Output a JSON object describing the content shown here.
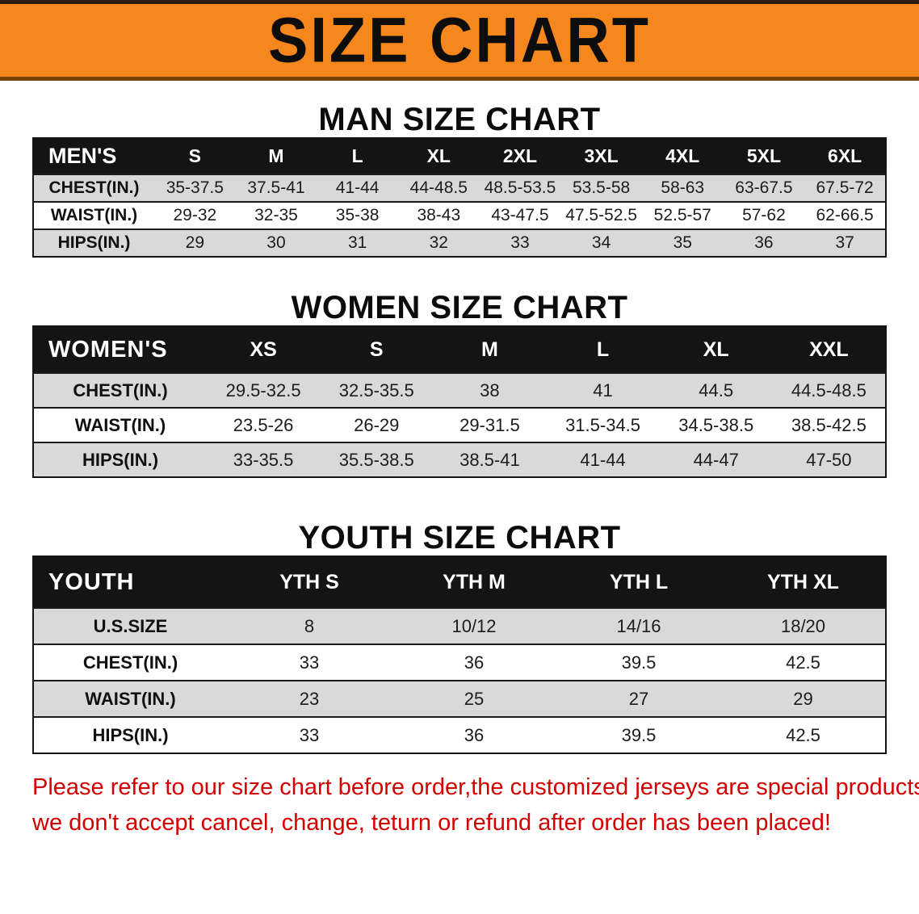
{
  "banner": {
    "title": "SIZE CHART",
    "bg_color": "#f6871d"
  },
  "men": {
    "heading": "MAN SIZE CHART",
    "table": {
      "header": [
        "MEN'S",
        "S",
        "M",
        "L",
        "XL",
        "2XL",
        "3XL",
        "4XL",
        "5XL",
        "6XL"
      ],
      "rows": [
        {
          "label": "CHEST(IN.)",
          "values": [
            "35-37.5",
            "37.5-41",
            "41-44",
            "44-48.5",
            "48.5-53.5",
            "53.5-58",
            "58-63",
            "63-67.5",
            "67.5-72"
          ]
        },
        {
          "label": "WAIST(IN.)",
          "values": [
            "29-32",
            "32-35",
            "35-38",
            "38-43",
            "43-47.5",
            "47.5-52.5",
            "52.5-57",
            "57-62",
            "62-66.5"
          ]
        },
        {
          "label": "HIPS(IN.)",
          "values": [
            "29",
            "30",
            "31",
            "32",
            "33",
            "34",
            "35",
            "36",
            "37"
          ]
        }
      ]
    }
  },
  "women": {
    "heading": "WOMEN SIZE CHART",
    "table": {
      "header": [
        "WOMEN'S",
        "XS",
        "S",
        "M",
        "L",
        "XL",
        "XXL"
      ],
      "rows": [
        {
          "label": "CHEST(IN.)",
          "values": [
            "29.5-32.5",
            "32.5-35.5",
            "38",
            "41",
            "44.5",
            "44.5-48.5"
          ]
        },
        {
          "label": "WAIST(IN.)",
          "values": [
            "23.5-26",
            "26-29",
            "29-31.5",
            "31.5-34.5",
            "34.5-38.5",
            "38.5-42.5"
          ]
        },
        {
          "label": "HIPS(IN.)",
          "values": [
            "33-35.5",
            "35.5-38.5",
            "38.5-41",
            "41-44",
            "44-47",
            "47-50"
          ]
        }
      ]
    }
  },
  "youth": {
    "heading": "YOUTH SIZE CHART",
    "table": {
      "header": [
        "YOUTH",
        "YTH S",
        "YTH M",
        "YTH L",
        "YTH XL"
      ],
      "rows": [
        {
          "label": "U.S.SIZE",
          "values": [
            "8",
            "10/12",
            "14/16",
            "18/20"
          ]
        },
        {
          "label": "CHEST(IN.)",
          "values": [
            "33",
            "36",
            "39.5",
            "42.5"
          ]
        },
        {
          "label": "WAIST(IN.)",
          "values": [
            "23",
            "25",
            "27",
            "29"
          ]
        },
        {
          "label": "HIPS(IN.)",
          "values": [
            "33",
            "36",
            "39.5",
            "42.5"
          ]
        }
      ]
    }
  },
  "notice": {
    "line1": "Please refer to our size chart before order,the customized jerseys are special products,",
    "line2": "we don't accept cancel, change, teturn or refund after order has been placed!",
    "color": "#d40000"
  }
}
